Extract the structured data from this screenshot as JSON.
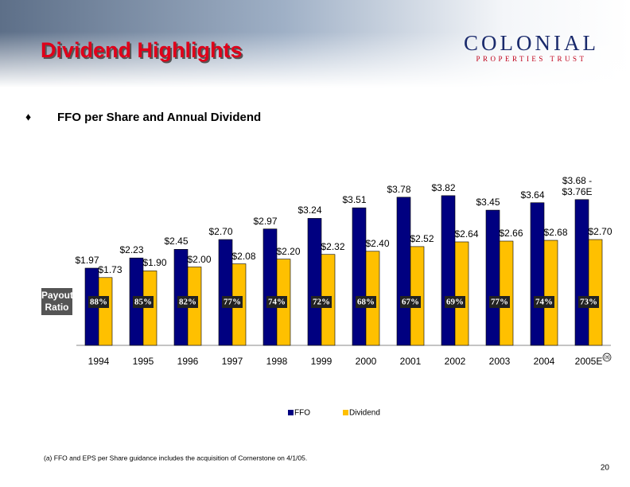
{
  "header": {
    "title": "Dividend Highlights",
    "logo_name": "COLONIAL",
    "logo_tagline": "PROPERTIES TRUST"
  },
  "chart_data": {
    "type": "bar",
    "title": "FFO per Share and Annual Dividend",
    "categories": [
      "1994",
      "1995",
      "1996",
      "1997",
      "1998",
      "1999",
      "2000",
      "2001",
      "2002",
      "2003",
      "2004",
      "2005E"
    ],
    "series": [
      {
        "name": "FFO",
        "color": "#000080",
        "values": [
          1.97,
          2.23,
          2.45,
          2.7,
          2.97,
          3.24,
          3.51,
          3.78,
          3.82,
          3.45,
          3.64,
          3.72
        ],
        "value_labels": [
          "$1.97",
          "$2.23",
          "$2.45",
          "$2.70",
          "$2.97",
          "$3.24",
          "$3.51",
          "$3.78",
          "$3.82",
          "$3.45",
          "$3.64",
          "$3.68 - $3.76E"
        ]
      },
      {
        "name": "Dividend",
        "color": "#FFC000",
        "values": [
          1.73,
          1.9,
          2.0,
          2.08,
          2.2,
          2.32,
          2.4,
          2.52,
          2.64,
          2.66,
          2.68,
          2.7
        ],
        "value_labels": [
          "$1.73",
          "$1.90",
          "$2.00",
          "$2.08",
          "$2.20",
          "$2.32",
          "$2.40",
          "$2.52",
          "$2.64",
          "$2.66",
          "$2.68",
          "$2.70"
        ]
      }
    ],
    "ylim": [
      0,
      4
    ],
    "payout_ratio": {
      "title": "Payout Ratio",
      "values": [
        88,
        85,
        82,
        77,
        74,
        72,
        68,
        67,
        69,
        77,
        74,
        73
      ],
      "value_labels": [
        "88%",
        "85%",
        "82%",
        "77%",
        "74%",
        "72%",
        "68%",
        "67%",
        "69%",
        "77%",
        "74%",
        "73%"
      ]
    },
    "note_marker": "(a)"
  },
  "footnote": "(a) FFO and EPS per Share guidance includes the acquisition of Cornerstone on 4/1/05.",
  "page_number": "20"
}
